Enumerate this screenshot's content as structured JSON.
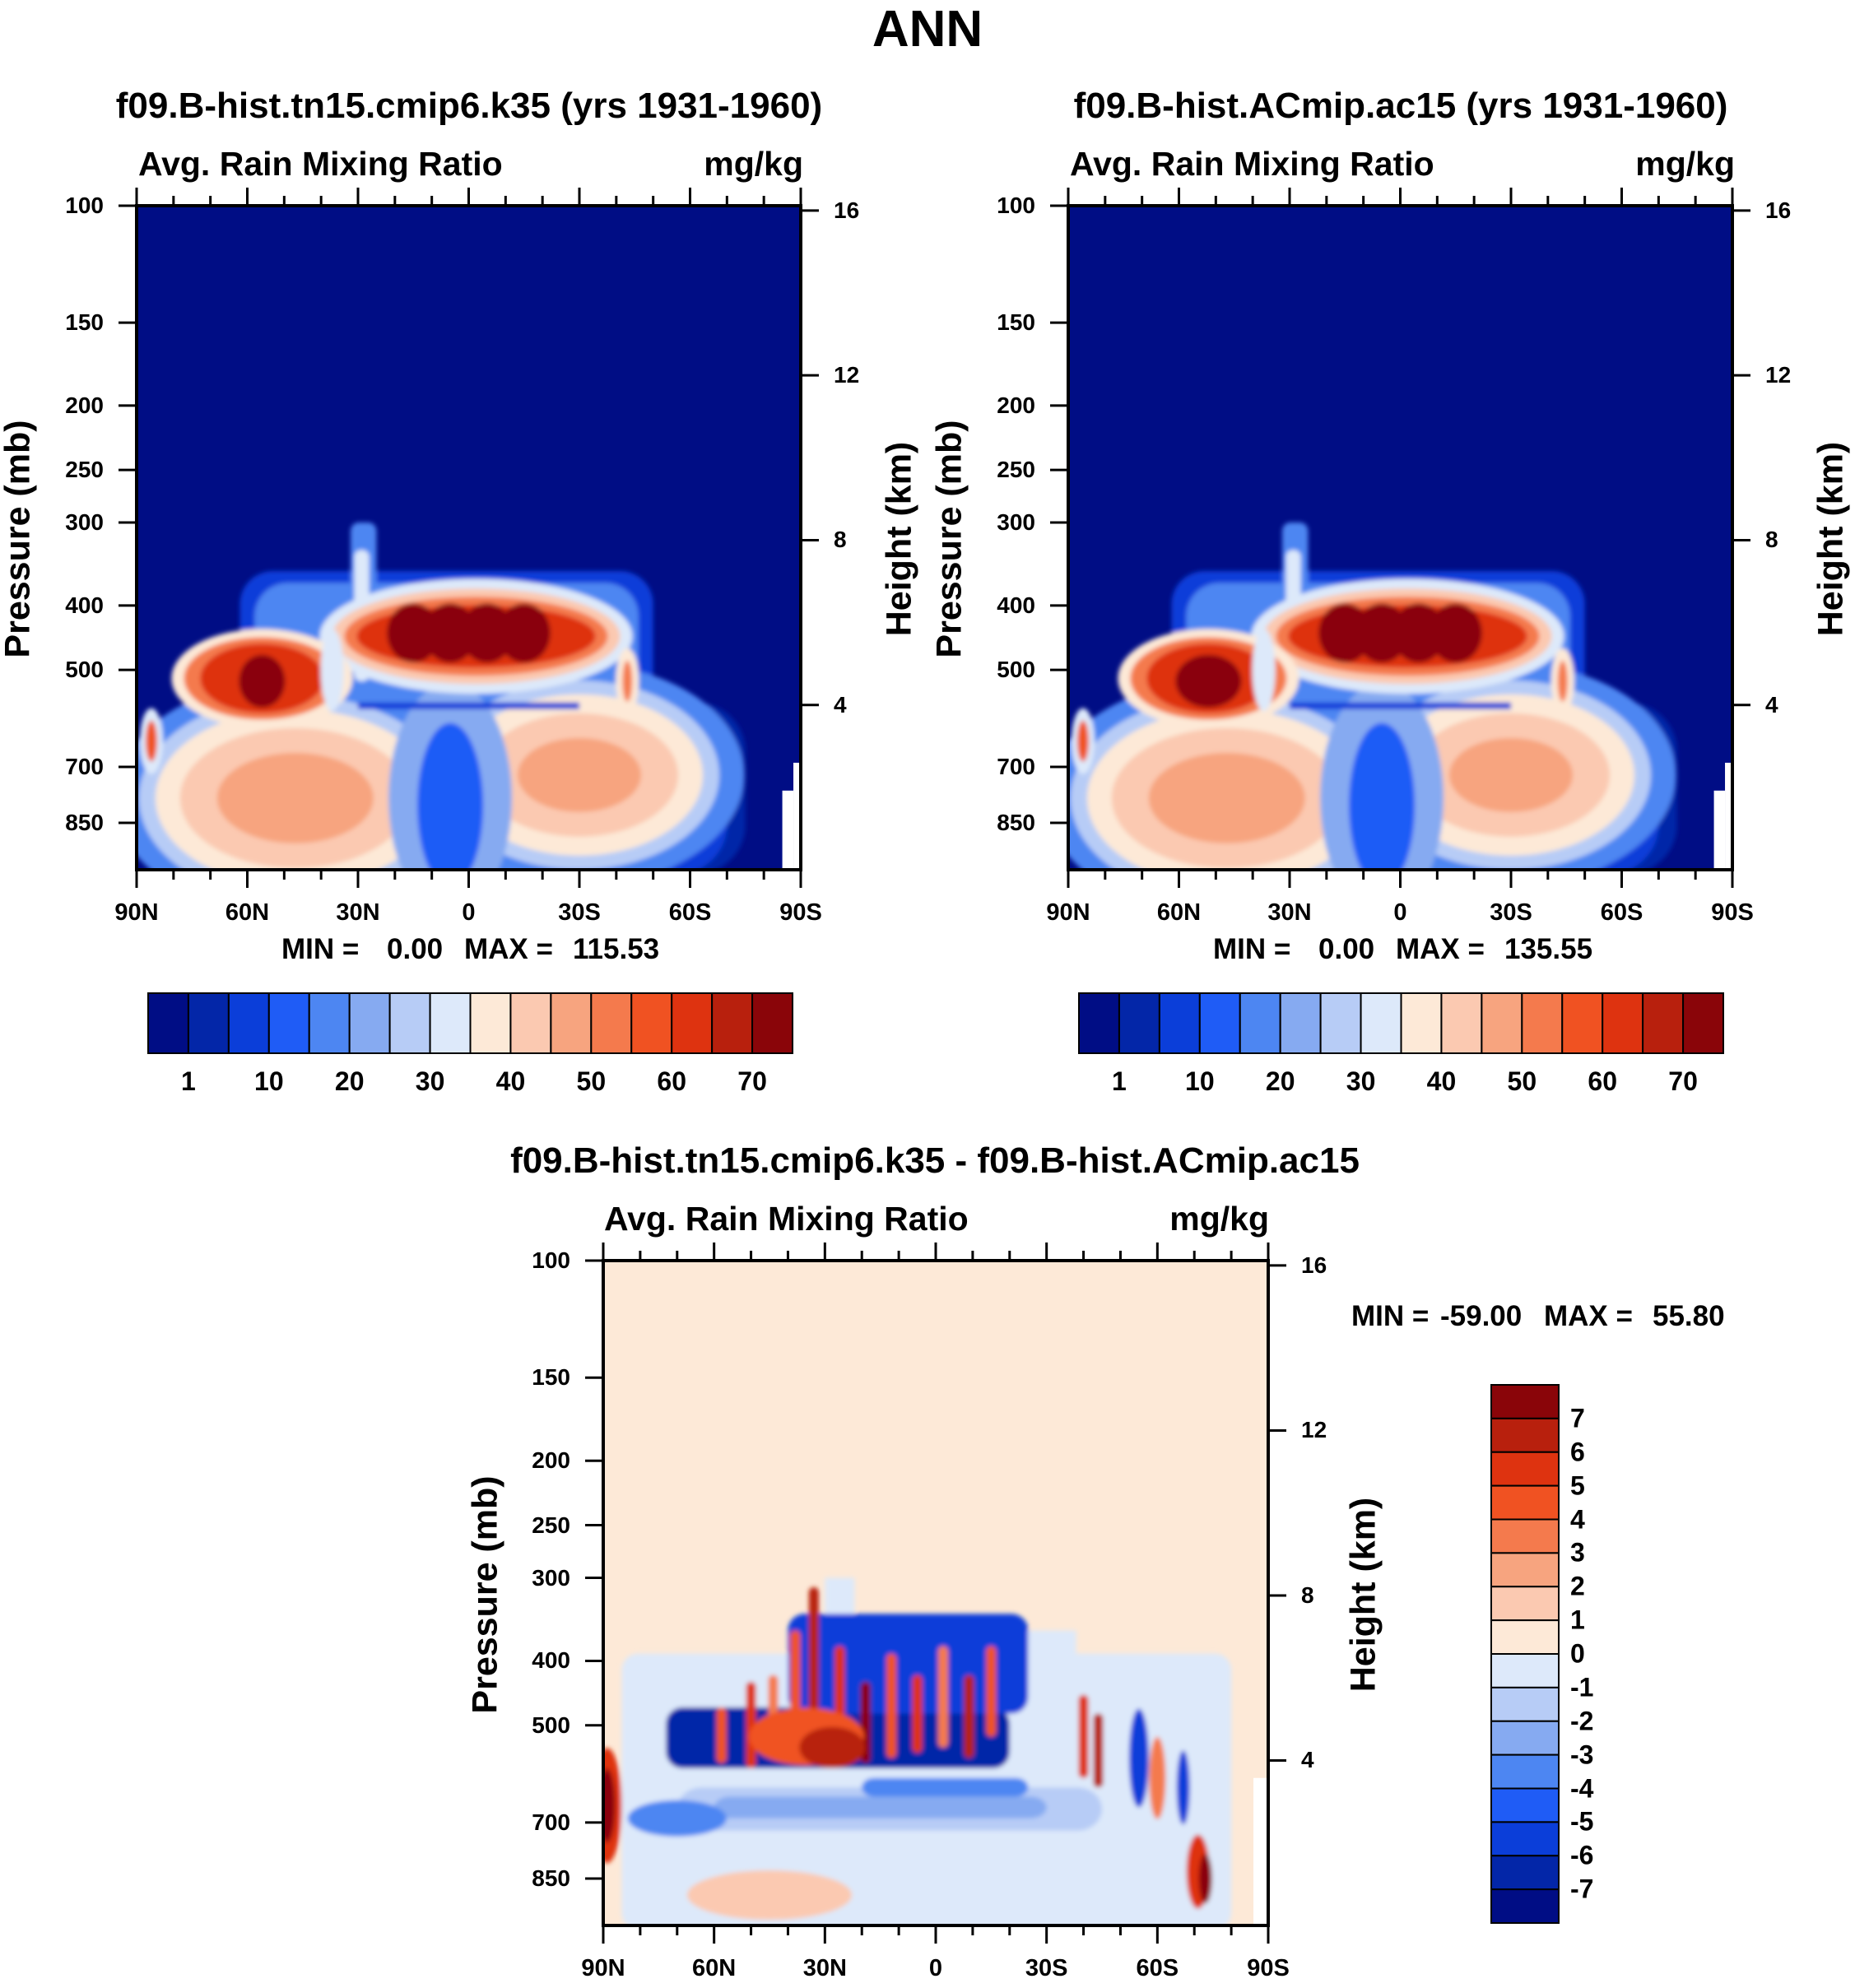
{
  "title": "ANN",
  "colors": {
    "abs_scale": [
      "#000d85",
      "#0326a8",
      "#0b3ed9",
      "#1f5cf6",
      "#4d86f2",
      "#86aaf1",
      "#b7ccf6",
      "#dde9fa",
      "#fde9d7",
      "#fbc9b1",
      "#f7a47f",
      "#f47a4d",
      "#f05222",
      "#de3310",
      "#b8200d",
      "#8a0509"
    ],
    "diff_scale": [
      "#000d85",
      "#0326a8",
      "#0b3ed9",
      "#1f5cf6",
      "#4d86f2",
      "#86aaf1",
      "#b7ccf6",
      "#dde9fa",
      "#fde9d7",
      "#fbc9b1",
      "#f7a47f",
      "#f47a4d",
      "#f05222",
      "#de3310",
      "#b8200d",
      "#8a0509"
    ]
  },
  "panels": [
    {
      "title": "f09.B-hist.tn15.cmip6.k35 (yrs 1931-1960)",
      "subtitle_left": "Avg. Rain Mixing Ratio",
      "subtitle_right": "mg/kg",
      "min_label": "MIN =",
      "min_value": "0.00",
      "max_label": "MAX =",
      "max_value": "115.53"
    },
    {
      "title": "f09.B-hist.ACmip.ac15 (yrs 1931-1960)",
      "subtitle_left": "Avg. Rain Mixing Ratio",
      "subtitle_right": "mg/kg",
      "min_label": "MIN =",
      "min_value": "0.00",
      "max_label": "MAX =",
      "max_value": "135.55"
    },
    {
      "title": "f09.B-hist.tn15.cmip6.k35 - f09.B-hist.ACmip.ac15",
      "subtitle_left": "Avg. Rain Mixing Ratio",
      "subtitle_right": "mg/kg",
      "min_label": "MIN =",
      "min_value": "-59.00",
      "max_label": "MAX =",
      "max_value": "55.80"
    }
  ],
  "chart_data": [
    {
      "type": "heatmap",
      "title": "f09.B-hist.tn15.cmip6.k35 (yrs 1931-1960)",
      "subtitle": "Avg. Rain Mixing Ratio",
      "units": "mg/kg",
      "xlabel": "",
      "ylabel": "Pressure (mb)",
      "y2label": "Height (km)",
      "x_ticks": [
        "90N",
        "60N",
        "30N",
        "0",
        "30S",
        "60S",
        "90S"
      ],
      "x_range_deg": [
        90,
        -90
      ],
      "y_ticks": [
        100,
        150,
        200,
        250,
        300,
        400,
        500,
        700,
        850
      ],
      "y2_ticks": [
        16,
        12,
        8,
        4
      ],
      "contour_levels": [
        1,
        5,
        10,
        15,
        20,
        25,
        30,
        35,
        40,
        45,
        50,
        55,
        60,
        65,
        70
      ],
      "colorbar_labels": [
        "1",
        "10",
        "20",
        "30",
        "40",
        "50",
        "60",
        "70"
      ],
      "min": 0.0,
      "max": 115.53,
      "features": [
        {
          "desc": "rain maximum",
          "lat": -5,
          "p": 440,
          "value": 110
        },
        {
          "desc": "rain maximum",
          "lat": 55,
          "p": 510,
          "value": 90
        },
        {
          "desc": "upward tongue",
          "lat": 29,
          "p": 300,
          "value": 40
        },
        {
          "desc": "lower maximum",
          "lat": 45,
          "p": 780,
          "value": 45
        },
        {
          "desc": "lower maximum",
          "lat": -32,
          "p": 720,
          "value": 45
        }
      ]
    },
    {
      "type": "heatmap",
      "title": "f09.B-hist.ACmip.ac15 (yrs 1931-1960)",
      "subtitle": "Avg. Rain Mixing Ratio",
      "units": "mg/kg",
      "xlabel": "",
      "ylabel": "Pressure (mb)",
      "y2label": "Height (km)",
      "x_ticks": [
        "90N",
        "60N",
        "30N",
        "0",
        "30S",
        "60S",
        "90S"
      ],
      "x_range_deg": [
        90,
        -90
      ],
      "y_ticks": [
        100,
        150,
        200,
        250,
        300,
        400,
        500,
        700,
        850
      ],
      "y2_ticks": [
        16,
        12,
        8,
        4
      ],
      "contour_levels": [
        1,
        5,
        10,
        15,
        20,
        25,
        30,
        35,
        40,
        45,
        50,
        55,
        60,
        65,
        70
      ],
      "colorbar_labels": [
        "1",
        "10",
        "20",
        "30",
        "40",
        "50",
        "60",
        "70"
      ],
      "min": 0.0,
      "max": 135.55,
      "features": [
        {
          "desc": "rain maximum",
          "lat": -5,
          "p": 440,
          "value": 130
        },
        {
          "desc": "rain maximum",
          "lat": 52,
          "p": 510,
          "value": 115
        },
        {
          "desc": "upward tongue",
          "lat": 29,
          "p": 300,
          "value": 40
        },
        {
          "desc": "lower maximum",
          "lat": 45,
          "p": 780,
          "value": 45
        },
        {
          "desc": "lower maximum",
          "lat": -35,
          "p": 720,
          "value": 45
        }
      ]
    },
    {
      "type": "heatmap",
      "title": "f09.B-hist.tn15.cmip6.k35 - f09.B-hist.ACmip.ac15",
      "subtitle": "Avg. Rain Mixing Ratio",
      "units": "mg/kg",
      "xlabel": "",
      "ylabel": "Pressure (mb)",
      "y2label": "Height (km)",
      "x_ticks": [
        "90N",
        "60N",
        "30N",
        "0",
        "30S",
        "60S",
        "90S"
      ],
      "x_range_deg": [
        90,
        -90
      ],
      "y_ticks": [
        100,
        150,
        200,
        250,
        300,
        400,
        500,
        700,
        850
      ],
      "y2_ticks": [
        16,
        12,
        8,
        4
      ],
      "contour_levels": [
        -7,
        -6,
        -5,
        -4,
        -3,
        -2,
        -1,
        0,
        1,
        2,
        3,
        4,
        5,
        6,
        7
      ],
      "colorbar_labels": [
        "7",
        "6",
        "5",
        "4",
        "3",
        "2",
        "1",
        "0",
        "-1",
        "-2",
        "-3",
        "-4",
        "-5",
        "-6",
        "-7"
      ],
      "min": -59.0,
      "max": 55.8
    }
  ]
}
